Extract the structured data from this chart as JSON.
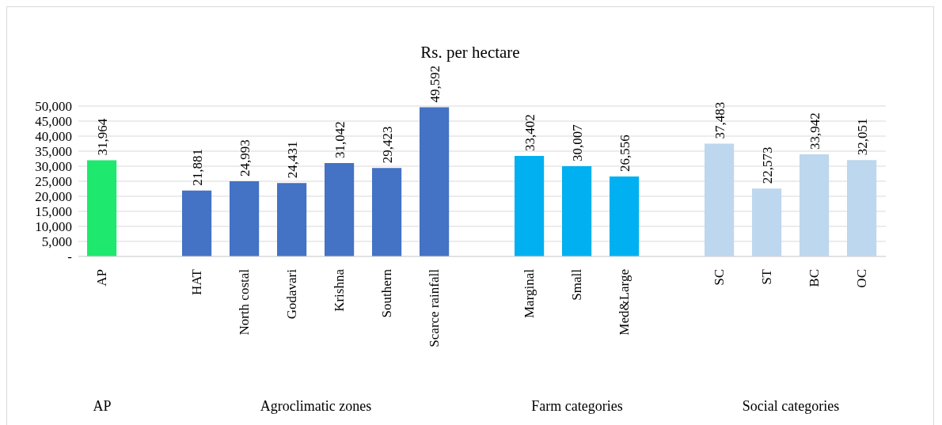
{
  "chart_data": {
    "type": "bar",
    "title": "Rs. per hectare",
    "categories": [
      "AP",
      null,
      "HAT",
      "North costal",
      "Godavari",
      "Krishna",
      "Southern",
      "Scarce rainfall",
      null,
      "Marginal",
      "Small",
      "Med&Large",
      null,
      "SC",
      "ST",
      "BC",
      "OC"
    ],
    "values": [
      31964,
      null,
      21881,
      24993,
      24431,
      31042,
      29423,
      49592,
      null,
      33402,
      30007,
      26556,
      null,
      37483,
      22573,
      33942,
      32051
    ],
    "value_labels": [
      "31,964",
      null,
      "21,881",
      "24,993",
      "24,431",
      "31,042",
      "29,423",
      "49,592",
      null,
      "33,402",
      "30,007",
      "26,556",
      null,
      "37,483",
      "22,573",
      "33,942",
      "32,051"
    ],
    "colors": [
      "#1ee86e",
      null,
      "#4472c4",
      "#4472c4",
      "#4472c4",
      "#4472c4",
      "#4472c4",
      "#4472c4",
      null,
      "#00b0f0",
      "#00b0f0",
      "#00b0f0",
      null,
      "#bdd7ee",
      "#bdd7ee",
      "#bdd7ee",
      "#bdd7ee"
    ],
    "ylim": [
      0,
      50000
    ],
    "yticks": [
      {
        "value": 0,
        "label": "-"
      },
      {
        "value": 5000,
        "label": "5,000"
      },
      {
        "value": 10000,
        "label": "10,000"
      },
      {
        "value": 15000,
        "label": "15,000"
      },
      {
        "value": 20000,
        "label": "20,000"
      },
      {
        "value": 25000,
        "label": "25,000"
      },
      {
        "value": 30000,
        "label": "30,000"
      },
      {
        "value": 35000,
        "label": "35,000"
      },
      {
        "value": 40000,
        "label": "40,000"
      },
      {
        "value": 45000,
        "label": "45,000"
      },
      {
        "value": 50000,
        "label": "50,000"
      }
    ],
    "grid": "y",
    "annotations": [
      "AP",
      "Agroclimatic zones",
      "Farm categories",
      "Social categories"
    ]
  }
}
